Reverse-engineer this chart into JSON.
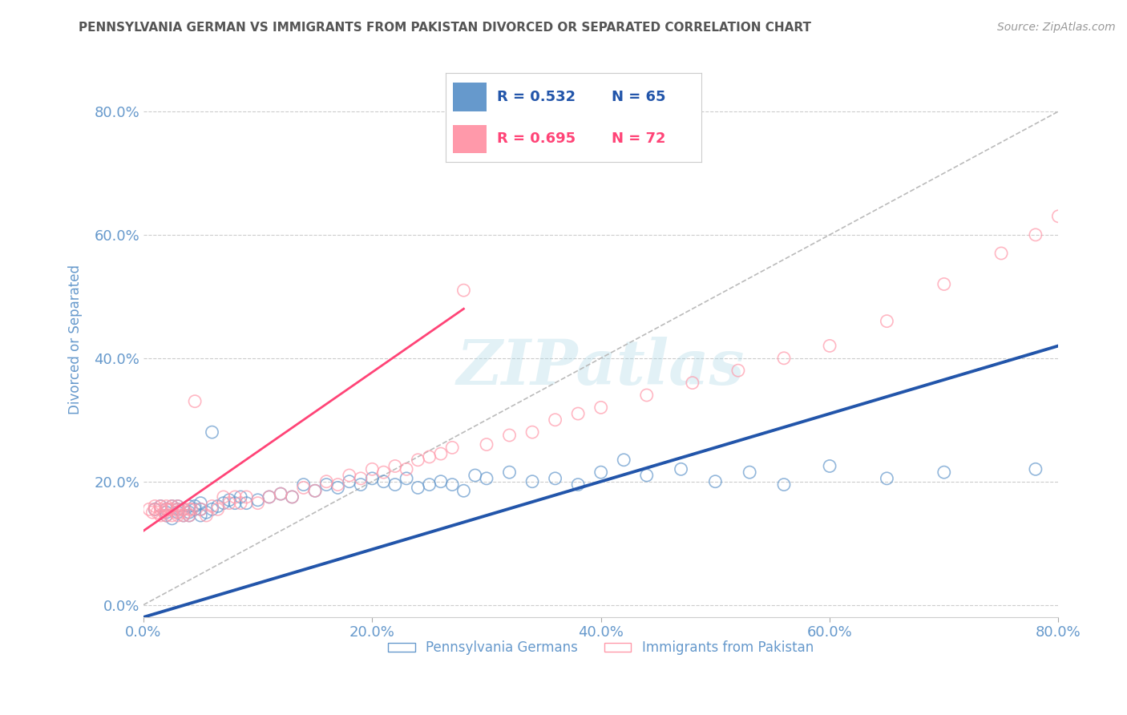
{
  "title": "PENNSYLVANIA GERMAN VS IMMIGRANTS FROM PAKISTAN DIVORCED OR SEPARATED CORRELATION CHART",
  "source": "Source: ZipAtlas.com",
  "ylabel": "Divorced or Separated",
  "xlabel": "",
  "xlim": [
    0.0,
    0.8
  ],
  "ylim": [
    -0.02,
    0.88
  ],
  "yticks": [
    0.0,
    0.2,
    0.4,
    0.6,
    0.8
  ],
  "xticks": [
    0.0,
    0.2,
    0.4,
    0.6,
    0.8
  ],
  "blue_R": "R = 0.532",
  "blue_N": "N = 65",
  "pink_R": "R = 0.695",
  "pink_N": "N = 72",
  "blue_color": "#6699CC",
  "pink_color": "#FF99AA",
  "blue_line_color": "#2255AA",
  "pink_line_color": "#FF4477",
  "trend_line_color": "#BBBBBB",
  "title_color": "#555555",
  "axis_label_color": "#6699CC",
  "tick_label_color": "#6699CC",
  "watermark": "ZIPatlas",
  "legend_label_blue": "Pennsylvania Germans",
  "legend_label_pink": "Immigrants from Pakistan",
  "blue_line_x0": 0.0,
  "blue_line_y0": -0.02,
  "blue_line_x1": 0.8,
  "blue_line_y1": 0.42,
  "pink_line_x0": 0.0,
  "pink_line_y0": 0.12,
  "pink_line_x1": 0.28,
  "pink_line_y1": 0.48,
  "blue_scatter_x": [
    0.01,
    0.015,
    0.02,
    0.02,
    0.02,
    0.025,
    0.025,
    0.03,
    0.03,
    0.03,
    0.035,
    0.035,
    0.04,
    0.04,
    0.04,
    0.045,
    0.045,
    0.05,
    0.05,
    0.05,
    0.055,
    0.06,
    0.06,
    0.065,
    0.07,
    0.075,
    0.08,
    0.085,
    0.09,
    0.1,
    0.11,
    0.12,
    0.13,
    0.14,
    0.15,
    0.16,
    0.17,
    0.18,
    0.19,
    0.2,
    0.21,
    0.22,
    0.23,
    0.24,
    0.25,
    0.26,
    0.27,
    0.28,
    0.29,
    0.3,
    0.32,
    0.34,
    0.36,
    0.38,
    0.4,
    0.42,
    0.44,
    0.47,
    0.5,
    0.53,
    0.56,
    0.6,
    0.65,
    0.7,
    0.78
  ],
  "blue_scatter_y": [
    0.155,
    0.16,
    0.155,
    0.145,
    0.15,
    0.14,
    0.16,
    0.15,
    0.155,
    0.16,
    0.145,
    0.155,
    0.15,
    0.16,
    0.145,
    0.155,
    0.16,
    0.145,
    0.155,
    0.165,
    0.15,
    0.155,
    0.28,
    0.16,
    0.165,
    0.17,
    0.165,
    0.175,
    0.165,
    0.17,
    0.175,
    0.18,
    0.175,
    0.195,
    0.185,
    0.195,
    0.19,
    0.2,
    0.195,
    0.205,
    0.2,
    0.195,
    0.205,
    0.19,
    0.195,
    0.2,
    0.195,
    0.185,
    0.21,
    0.205,
    0.215,
    0.2,
    0.205,
    0.195,
    0.215,
    0.235,
    0.21,
    0.22,
    0.2,
    0.215,
    0.195,
    0.225,
    0.205,
    0.215,
    0.22
  ],
  "pink_scatter_x": [
    0.005,
    0.008,
    0.01,
    0.01,
    0.012,
    0.015,
    0.015,
    0.015,
    0.018,
    0.02,
    0.02,
    0.02,
    0.022,
    0.025,
    0.025,
    0.025,
    0.028,
    0.03,
    0.03,
    0.03,
    0.032,
    0.035,
    0.035,
    0.038,
    0.04,
    0.04,
    0.042,
    0.045,
    0.05,
    0.055,
    0.06,
    0.065,
    0.07,
    0.075,
    0.08,
    0.085,
    0.09,
    0.1,
    0.11,
    0.12,
    0.13,
    0.14,
    0.15,
    0.16,
    0.17,
    0.18,
    0.19,
    0.2,
    0.21,
    0.22,
    0.23,
    0.24,
    0.25,
    0.26,
    0.27,
    0.28,
    0.3,
    0.32,
    0.34,
    0.36,
    0.38,
    0.4,
    0.44,
    0.48,
    0.52,
    0.56,
    0.6,
    0.65,
    0.7,
    0.75,
    0.78,
    0.8
  ],
  "pink_scatter_y": [
    0.155,
    0.15,
    0.16,
    0.155,
    0.15,
    0.145,
    0.155,
    0.16,
    0.15,
    0.155,
    0.145,
    0.16,
    0.155,
    0.145,
    0.155,
    0.16,
    0.15,
    0.145,
    0.155,
    0.16,
    0.15,
    0.145,
    0.155,
    0.15,
    0.155,
    0.145,
    0.155,
    0.33,
    0.155,
    0.145,
    0.16,
    0.155,
    0.175,
    0.165,
    0.175,
    0.165,
    0.175,
    0.165,
    0.175,
    0.18,
    0.175,
    0.19,
    0.185,
    0.2,
    0.195,
    0.21,
    0.205,
    0.22,
    0.215,
    0.225,
    0.22,
    0.235,
    0.24,
    0.245,
    0.255,
    0.51,
    0.26,
    0.275,
    0.28,
    0.3,
    0.31,
    0.32,
    0.34,
    0.36,
    0.38,
    0.4,
    0.42,
    0.46,
    0.52,
    0.57,
    0.6,
    0.63
  ]
}
